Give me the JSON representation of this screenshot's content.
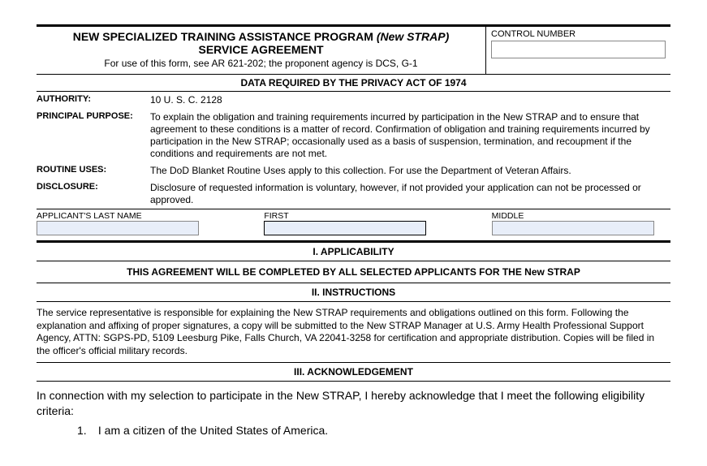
{
  "header": {
    "title_main": "NEW SPECIALIZED TRAINING ASSISTANCE PROGRAM",
    "title_paren": "(New STRAP)",
    "title_line2": "SERVICE AGREEMENT",
    "subtitle": "For use of this form, see AR 621-202; the proponent agency is DCS, G-1",
    "control_label": "CONTROL NUMBER",
    "control_value": ""
  },
  "privacy": {
    "heading": "DATA REQUIRED BY THE PRIVACY ACT OF 1974",
    "authority_label": "AUTHORITY:",
    "authority_value": "10 U. S. C. 2128",
    "purpose_label": "PRINCIPAL PURPOSE:",
    "purpose_value": "To explain the obligation and training requirements incurred by participation in the New STRAP and to ensure that agreement to these conditions is a matter of record. Confirmation of obligation and training requirements incurred by participation in the New STRAP; occasionally used as a basis of suspension, termination, and recoupment if the conditions and requirements are not met.",
    "routine_label": "ROUTINE USES:",
    "routine_value": "The DoD Blanket Routine Uses apply to this collection.  For use the Department of Veteran Affairs.",
    "disclosure_label": "DISCLOSURE:",
    "disclosure_value": "Disclosure of requested information is voluntary, however, if not provided your application can not be processed or approved."
  },
  "name_fields": {
    "last_label": "APPLICANT'S LAST NAME",
    "last_value": "",
    "first_label": "FIRST",
    "first_value": "",
    "middle_label": "MIDDLE",
    "middle_value": ""
  },
  "sections": {
    "applicability_title": "I. APPLICABILITY",
    "applicability_text": "THIS AGREEMENT WILL BE COMPLETED BY ALL SELECTED APPLICANTS FOR THE New STRAP",
    "instructions_title": "II. INSTRUCTIONS",
    "instructions_text": "The service representative is responsible for explaining the New STRAP requirements and obligations outlined on this form.  Following the explanation and affixing of proper signatures, a copy will be submitted to the New STRAP Manager at U.S. Army Health Professional Support Agency, ATTN:  SGPS-PD, 5109 Leesburg Pike, Falls Church, VA 22041-3258 for certification and appropriate distribution.  Copies will be filed in the officer's official military records.",
    "ack_title": "III. ACKNOWLEDGEMENT",
    "ack_intro": "In connection with my selection to participate in the New STRAP, I hereby acknowledge that I meet the following eligibility criteria:",
    "ack_item_num": "1.",
    "ack_item_1": "I am a citizen of the United States of America."
  }
}
